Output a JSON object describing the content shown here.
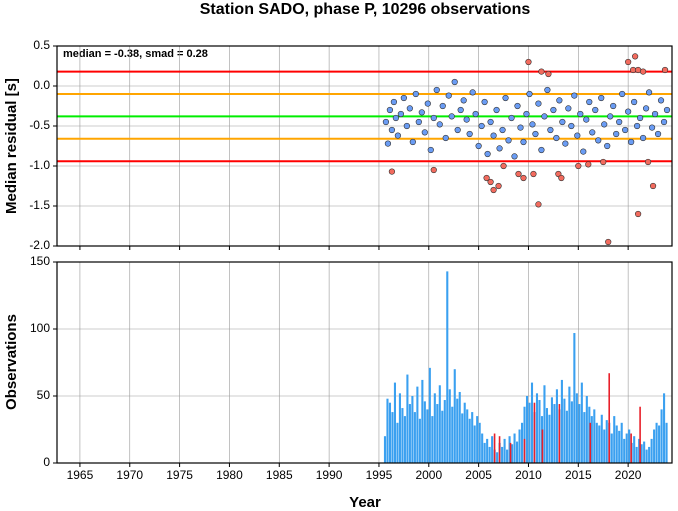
{
  "chart_data": [
    {
      "type": "scatter",
      "title": "Station SADO, phase P, 10296 observations",
      "ylabel": "Median residual [s]",
      "annotation": "median = -0.38, smad = 0.28",
      "xlim": [
        1962.7,
        2024.4
      ],
      "xticks": [
        1965,
        1970,
        1975,
        1980,
        1985,
        1990,
        1995,
        2000,
        2005,
        2010,
        2015,
        2020
      ],
      "ylim": [
        -2.0,
        0.5
      ],
      "yticks": [
        0.5,
        {
          "value": 0,
          "label": "0.0"
        },
        -0.5,
        {
          "value": -1,
          "label": "-1.0"
        },
        -1.5,
        {
          "value": -2,
          "label": "-2.0"
        }
      ],
      "grid": true,
      "hlines": [
        {
          "value": 0.18,
          "color": "#ff0000"
        },
        {
          "value": -0.1,
          "color": "#ffa500"
        },
        {
          "value": -0.38,
          "color": "#00ee00"
        },
        {
          "value": -0.66,
          "color": "#ffa500"
        },
        {
          "value": -0.94,
          "color": "#ff0000"
        }
      ],
      "series": [
        {
          "color": "#6a9cf4",
          "x": [
            1995.7,
            1995.9,
            1996.1,
            1996.3,
            1996.5,
            1996.7,
            1996.9,
            1997.2,
            1997.5,
            1997.8,
            1998.1,
            1998.4,
            1998.7,
            1999.0,
            1999.3,
            1999.6,
            1999.9,
            2000.2,
            2000.5,
            2000.8,
            2001.1,
            2001.4,
            2001.7,
            2002.0,
            2002.3,
            2002.6,
            2002.9,
            2003.2,
            2003.5,
            2003.8,
            2004.1,
            2004.4,
            2004.7,
            2005.0,
            2005.3,
            2005.6,
            2005.9,
            2006.2,
            2006.5,
            2006.8,
            2007.1,
            2007.4,
            2007.7,
            2008.0,
            2008.3,
            2008.6,
            2008.9,
            2009.2,
            2009.5,
            2009.8,
            2010.1,
            2010.4,
            2010.7,
            2011.0,
            2011.3,
            2011.6,
            2011.9,
            2012.2,
            2012.5,
            2012.8,
            2013.1,
            2013.4,
            2013.7,
            2014.0,
            2014.3,
            2014.6,
            2014.9,
            2015.2,
            2015.5,
            2015.8,
            2016.1,
            2016.4,
            2016.7,
            2017.0,
            2017.3,
            2017.6,
            2017.9,
            2018.2,
            2018.5,
            2018.8,
            2019.1,
            2019.4,
            2019.7,
            2020.0,
            2020.3,
            2020.6,
            2020.9,
            2021.2,
            2021.5,
            2021.8,
            2022.1,
            2022.4,
            2022.7,
            2023.0,
            2023.3,
            2023.6,
            2023.9
          ],
          "values": [
            -0.45,
            -0.72,
            -0.3,
            -0.55,
            -0.2,
            -0.4,
            -0.62,
            -0.35,
            -0.15,
            -0.5,
            -0.28,
            -0.7,
            -0.1,
            -0.45,
            -0.33,
            -0.58,
            -0.22,
            -0.8,
            -0.4,
            -0.05,
            -0.48,
            -0.25,
            -0.65,
            -0.12,
            -0.38,
            0.05,
            -0.55,
            -0.3,
            -0.18,
            -0.42,
            -0.6,
            -0.08,
            -0.35,
            -0.75,
            -0.5,
            -0.2,
            -0.85,
            -0.45,
            -0.62,
            -0.3,
            -0.78,
            -0.55,
            -0.15,
            -0.68,
            -0.4,
            -0.88,
            -0.25,
            -0.52,
            -0.7,
            -0.35,
            -0.1,
            -0.48,
            -0.6,
            -0.22,
            -0.8,
            -0.38,
            -0.05,
            -0.55,
            -0.3,
            -0.65,
            -0.18,
            -0.45,
            -0.72,
            -0.28,
            -0.5,
            -0.12,
            -0.62,
            -0.35,
            -0.82,
            -0.42,
            -0.2,
            -0.58,
            -0.3,
            -0.68,
            -0.15,
            -0.48,
            -0.75,
            -0.38,
            -0.25,
            -0.6,
            -0.45,
            -0.1,
            -0.55,
            -0.32,
            -0.7,
            -0.2,
            -0.5,
            -0.4,
            -0.65,
            -0.28,
            -0.08,
            -0.52,
            -0.35,
            -0.6,
            -0.18,
            -0.45,
            -0.3
          ]
        },
        {
          "color": "#f26b5e",
          "x": [
            1996.3,
            2000.5,
            2005.8,
            2006.2,
            2006.5,
            2007.0,
            2007.5,
            2009.0,
            2009.5,
            2010.0,
            2010.5,
            2011.0,
            2011.3,
            2012.0,
            2013.0,
            2013.3,
            2015.0,
            2016.0,
            2017.5,
            2018.0,
            2020.0,
            2020.5,
            2020.7,
            2021.0,
            2021.5,
            2022.0,
            2022.5,
            2021.0,
            2023.7
          ],
          "values": [
            -1.07,
            -1.05,
            -1.15,
            -1.2,
            -1.3,
            -1.25,
            -1.0,
            -1.1,
            -1.15,
            0.3,
            -1.1,
            -1.48,
            0.18,
            0.15,
            -1.1,
            -1.15,
            -1.0,
            -0.98,
            -0.95,
            -1.95,
            0.3,
            0.2,
            0.37,
            0.2,
            0.18,
            -0.95,
            -1.25,
            -1.6,
            0.2
          ]
        }
      ]
    },
    {
      "type": "histogram",
      "xlabel": "Year",
      "ylabel": "Observations",
      "xlim": [
        1962.7,
        2024.4
      ],
      "xticks": [
        1965,
        1970,
        1975,
        1980,
        1985,
        1990,
        1995,
        2000,
        2005,
        2010,
        2015,
        2020
      ],
      "ylim": [
        0,
        150
      ],
      "yticks": [
        0,
        50,
        100,
        150
      ],
      "grid": true,
      "bins": [
        1995.5,
        1995.75,
        1996.0,
        1996.25,
        1996.5,
        1996.75,
        1997.0,
        1997.25,
        1997.5,
        1997.75,
        1998.0,
        1998.25,
        1998.5,
        1998.75,
        1999.0,
        1999.25,
        1999.5,
        1999.75,
        2000.0,
        2000.25,
        2000.5,
        2000.75,
        2001.0,
        2001.25,
        2001.5,
        2001.75,
        2002.0,
        2002.25,
        2002.5,
        2002.75,
        2003.0,
        2003.25,
        2003.5,
        2003.75,
        2004.0,
        2004.25,
        2004.5,
        2004.75,
        2005.0,
        2005.25,
        2005.5,
        2005.75,
        2006.0,
        2006.25,
        2006.5,
        2006.75,
        2007.0,
        2007.25,
        2007.5,
        2007.75,
        2008.0,
        2008.25,
        2008.5,
        2008.75,
        2009.0,
        2009.25,
        2009.5,
        2009.75,
        2010.0,
        2010.25,
        2010.5,
        2010.75,
        2011.0,
        2011.25,
        2011.5,
        2011.75,
        2012.0,
        2012.25,
        2012.5,
        2012.75,
        2013.0,
        2013.25,
        2013.5,
        2013.75,
        2014.0,
        2014.25,
        2014.5,
        2014.75,
        2015.0,
        2015.25,
        2015.5,
        2015.75,
        2016.0,
        2016.25,
        2016.5,
        2016.75,
        2017.0,
        2017.25,
        2017.5,
        2017.75,
        2018.0,
        2018.25,
        2018.5,
        2018.75,
        2019.0,
        2019.25,
        2019.5,
        2019.75,
        2020.0,
        2020.25,
        2020.5,
        2020.75,
        2021.0,
        2021.25,
        2021.5,
        2021.75,
        2022.0,
        2022.25,
        2022.5,
        2022.75,
        2023.0,
        2023.25,
        2023.5,
        2023.75,
        2024.0
      ],
      "values": [
        20,
        48,
        45,
        38,
        60,
        30,
        52,
        41,
        35,
        66,
        44,
        50,
        38,
        57,
        33,
        62,
        46,
        40,
        71,
        35,
        52,
        44,
        58,
        39,
        47,
        143,
        55,
        42,
        70,
        48,
        53,
        37,
        45,
        40,
        33,
        38,
        28,
        35,
        30,
        22,
        15,
        18,
        12,
        20,
        10,
        8,
        15,
        12,
        18,
        10,
        20,
        14,
        22,
        16,
        25,
        30,
        42,
        50,
        45,
        60,
        38,
        52,
        47,
        35,
        58,
        41,
        36,
        49,
        44,
        55,
        40,
        62,
        48,
        39,
        57,
        46,
        97,
        52,
        44,
        60,
        38,
        50,
        42,
        35,
        40,
        30,
        28,
        36,
        25,
        32,
        30,
        22,
        35,
        28,
        24,
        30,
        18,
        22,
        25,
        15,
        20,
        12,
        18,
        14,
        16,
        10,
        12,
        18,
        25,
        30,
        28,
        40,
        52,
        30
      ],
      "color": "#3aa0f0",
      "highlight": {
        "color": "#e8202a",
        "x": [
          2006.6,
          2007.1,
          2008.2,
          2009.6,
          2010.6,
          2011.4,
          2013.1,
          2016.2,
          2018.1,
          2020.3,
          2021.2
        ],
        "values": [
          22,
          20,
          15,
          18,
          45,
          25,
          44,
          30,
          67,
          22,
          42
        ]
      }
    }
  ]
}
